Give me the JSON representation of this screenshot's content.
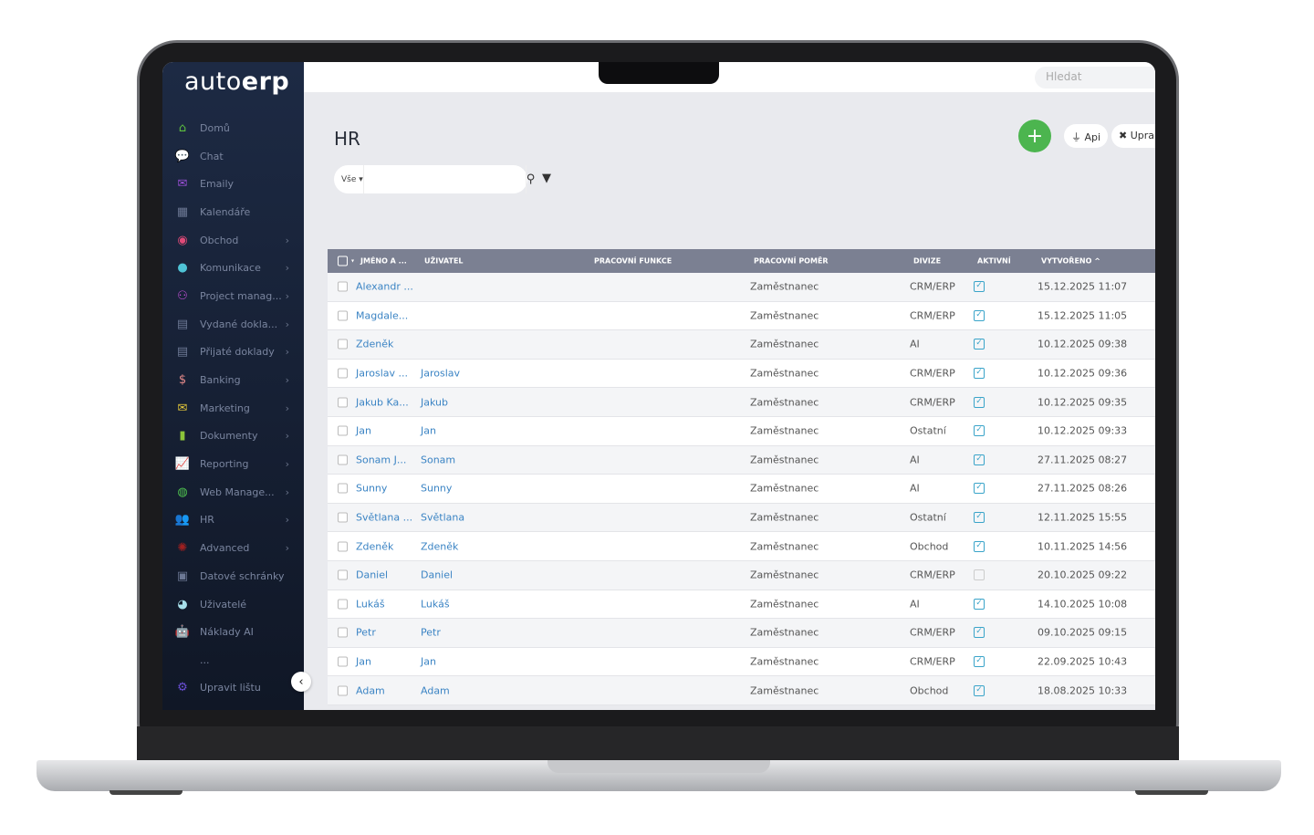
{
  "app": {
    "logo_light": "auto",
    "logo_bold": "erp",
    "search_placeholder": "Hledat"
  },
  "sidebar": {
    "items": [
      {
        "label": "Domů",
        "icon": "home-icon",
        "glyph": "⌂",
        "color": "#5ec13f",
        "chev": false
      },
      {
        "label": "Chat",
        "icon": "chat-icon",
        "glyph": "💬",
        "color": "#6c7894",
        "chev": false
      },
      {
        "label": "Emaily",
        "icon": "email-icon",
        "glyph": "✉",
        "color": "#9a4fd6",
        "chev": false
      },
      {
        "label": "Kalendáře",
        "icon": "calendar-icon",
        "glyph": "▦",
        "color": "#6c7894",
        "chev": false
      },
      {
        "label": "Obchod",
        "icon": "coins-icon",
        "glyph": "◉",
        "color": "#e04a78",
        "chev": true
      },
      {
        "label": "Komunikace",
        "icon": "comments-icon",
        "glyph": "●",
        "color": "#4fc3d6",
        "chev": true
      },
      {
        "label": "Project manag...",
        "icon": "project-icon",
        "glyph": "⚇",
        "color": "#c04fd6",
        "chev": true
      },
      {
        "label": "Vydané dokla...",
        "icon": "invoice-out-icon",
        "glyph": "▤",
        "color": "#6c7894",
        "chev": true
      },
      {
        "label": "Přijaté doklady",
        "icon": "invoice-in-icon",
        "glyph": "▤",
        "color": "#6c7894",
        "chev": true
      },
      {
        "label": "Banking",
        "icon": "dollar-icon",
        "glyph": "$",
        "color": "#e58a8a",
        "chev": true
      },
      {
        "label": "Marketing",
        "icon": "marketing-icon",
        "glyph": "✉",
        "color": "#e5c93a",
        "chev": true
      },
      {
        "label": "Dokumenty",
        "icon": "document-icon",
        "glyph": "▮",
        "color": "#8cc43a",
        "chev": true
      },
      {
        "label": "Reporting",
        "icon": "chart-icon",
        "glyph": "📈",
        "color": "#6c7894",
        "chev": true
      },
      {
        "label": "Web Manage...",
        "icon": "globe-icon",
        "glyph": "◍",
        "color": "#4fc34f",
        "chev": true
      },
      {
        "label": "HR",
        "icon": "users-icon",
        "glyph": "👥",
        "color": "#6c7894",
        "chev": true
      },
      {
        "label": "Advanced",
        "icon": "cog-icon",
        "glyph": "✺",
        "color": "#a02020",
        "chev": true
      },
      {
        "label": "Datové schránky",
        "icon": "mailbox-icon",
        "glyph": "▣",
        "color": "#6c7894",
        "chev": false
      },
      {
        "label": "Uživatelé",
        "icon": "user-circle-icon",
        "glyph": "◕",
        "color": "#a8e0ea",
        "chev": false
      },
      {
        "label": "Náklady AI",
        "icon": "robot-icon",
        "glyph": "🤖",
        "color": "#7aa6e0",
        "chev": false
      },
      {
        "label": "...",
        "icon": "more-icon",
        "glyph": "",
        "color": "#6c7894",
        "chev": false
      },
      {
        "label": "Upravit lištu",
        "icon": "edit-bar-icon",
        "glyph": "⚙",
        "color": "#6a4fd6",
        "chev": false
      }
    ]
  },
  "page": {
    "title": "HR",
    "api_label": "Api",
    "edit_label": "Upra",
    "filter_select": "Vše"
  },
  "colors": {
    "add": "#4cb54f",
    "header": "#7b8092",
    "link": "#3b84c4",
    "check": "#3aa4c9"
  },
  "table": {
    "headers": [
      "JMÉNO A ...",
      "UŽIVATEL",
      "PRACOVNÍ FUNKCE",
      "PRACOVNÍ POMĚR",
      "DIVIZE",
      "AKTIVNÍ",
      "VYTVOŘENO ^"
    ],
    "rows": [
      {
        "name": "Alexandr ...",
        "user": "",
        "func": "",
        "pomer": "Zaměstnanec",
        "div": "CRM/ERP",
        "active": true,
        "created": "15.12.2025 11:07"
      },
      {
        "name": "Magdale...",
        "user": "",
        "func": "",
        "pomer": "Zaměstnanec",
        "div": "CRM/ERP",
        "active": true,
        "created": "15.12.2025 11:05"
      },
      {
        "name": "Zdeněk",
        "user": "",
        "func": "",
        "pomer": "Zaměstnanec",
        "div": "AI",
        "active": true,
        "created": "10.12.2025 09:38"
      },
      {
        "name": "Jaroslav ...",
        "user": "Jaroslav",
        "func": "",
        "pomer": "Zaměstnanec",
        "div": "CRM/ERP",
        "active": true,
        "created": "10.12.2025 09:36"
      },
      {
        "name": "Jakub Ka...",
        "user": "Jakub",
        "func": "",
        "pomer": "Zaměstnanec",
        "div": "CRM/ERP",
        "active": true,
        "created": "10.12.2025 09:35"
      },
      {
        "name": "Jan",
        "user": "Jan",
        "func": "",
        "pomer": "Zaměstnanec",
        "div": "Ostatní",
        "active": true,
        "created": "10.12.2025 09:33"
      },
      {
        "name": "Sonam J...",
        "user": "Sonam",
        "func": "",
        "pomer": "Zaměstnanec",
        "div": "AI",
        "active": true,
        "created": "27.11.2025 08:27"
      },
      {
        "name": "Sunny",
        "user": "Sunny",
        "func": "",
        "pomer": "Zaměstnanec",
        "div": "AI",
        "active": true,
        "created": "27.11.2025 08:26"
      },
      {
        "name": "Světlana ...",
        "user": "Světlana",
        "func": "",
        "pomer": "Zaměstnanec",
        "div": "Ostatní",
        "active": true,
        "created": "12.11.2025 15:55"
      },
      {
        "name": "Zdeněk",
        "user": "Zdeněk",
        "func": "",
        "pomer": "Zaměstnanec",
        "div": "Obchod",
        "active": true,
        "created": "10.11.2025 14:56"
      },
      {
        "name": "Daniel",
        "user": "Daniel",
        "func": "",
        "pomer": "Zaměstnanec",
        "div": "CRM/ERP",
        "active": false,
        "created": "20.10.2025 09:22"
      },
      {
        "name": "Lukáš",
        "user": "Lukáš",
        "func": "",
        "pomer": "Zaměstnanec",
        "div": "AI",
        "active": true,
        "created": "14.10.2025 10:08"
      },
      {
        "name": "Petr",
        "user": "Petr",
        "func": "",
        "pomer": "Zaměstnanec",
        "div": "CRM/ERP",
        "active": true,
        "created": "09.10.2025 09:15"
      },
      {
        "name": "Jan",
        "user": "Jan",
        "func": "",
        "pomer": "Zaměstnanec",
        "div": "CRM/ERP",
        "active": true,
        "created": "22.09.2025 10:43"
      },
      {
        "name": "Adam",
        "user": "Adam",
        "func": "",
        "pomer": "Zaměstnanec",
        "div": "Obchod",
        "active": true,
        "created": "18.08.2025 10:33"
      }
    ]
  }
}
